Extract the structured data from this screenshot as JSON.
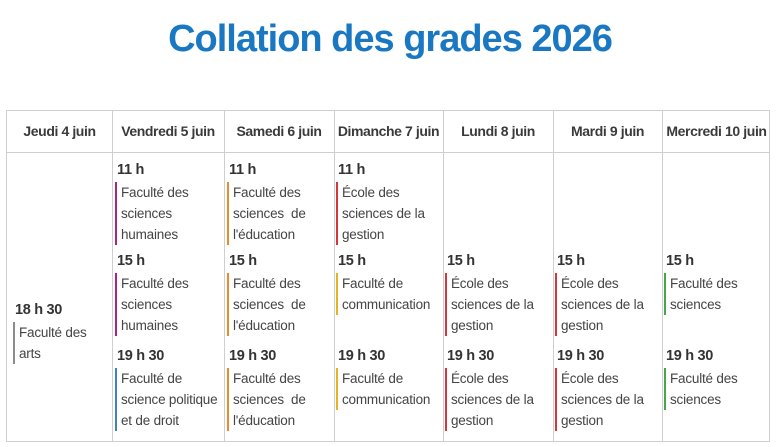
{
  "title": "Collation des grades 2026",
  "days": [
    {
      "label": "Jeudi 4 juin"
    },
    {
      "label": "Vendredi 5 juin"
    },
    {
      "label": "Samedi 6 juin"
    },
    {
      "label": "Dimanche 7 juin"
    },
    {
      "label": "Lundi 8 juin"
    },
    {
      "label": "Mardi 9 juin"
    },
    {
      "label": "Mercredi 10 juin"
    }
  ],
  "events": {
    "jeudi_1830": {
      "time": "18 h 30",
      "l1": "Faculté des",
      "l2": "arts",
      "color": "#8c8c8c"
    },
    "vendredi_11": {
      "time": "11 h",
      "l1": "Faculté des",
      "l2": "sciences",
      "l3": "humaines",
      "color": "#b3227a"
    },
    "vendredi_15": {
      "time": "15 h",
      "l1": "Faculté des",
      "l2": "sciences",
      "l3": "humaines",
      "color": "#b3227a"
    },
    "vendredi_1930": {
      "time": "19 h 30",
      "l1": "Faculté de",
      "l2": "science politique",
      "l3": "et de droit",
      "color": "#3b83c4"
    },
    "samedi_11": {
      "time": "11 h",
      "l1": "Faculté des",
      "l2": "sciences  de",
      "l3": "l'éducation",
      "color": "#ec8a2c"
    },
    "samedi_15": {
      "time": "15 h",
      "l1": "Faculté des",
      "l2": "sciences  de",
      "l3": "l'éducation",
      "color": "#ec8a2c"
    },
    "samedi_1930": {
      "time": "19 h 30",
      "l1": "Faculté des",
      "l2": "sciences  de",
      "l3": "l'éducation",
      "color": "#ec8a2c"
    },
    "dimanche_11": {
      "time": "11 h",
      "l1": "École des",
      "l2": "sciences de la",
      "l3": "gestion",
      "color": "#d7353c"
    },
    "dimanche_15": {
      "time": "15 h",
      "l1": "Faculté de",
      "l2": "communication",
      "color": "#e7b322"
    },
    "dimanche_1930": {
      "time": "19 h 30",
      "l1": "Faculté de",
      "l2": "communication",
      "color": "#e7b322"
    },
    "lundi_15": {
      "time": "15 h",
      "l1": "École des",
      "l2": "sciences de la",
      "l3": "gestion",
      "color": "#d7353c"
    },
    "lundi_1930": {
      "time": "19 h 30",
      "l1": "École des",
      "l2": "sciences de la",
      "l3": "gestion",
      "color": "#d7353c"
    },
    "mardi_15": {
      "time": "15 h",
      "l1": "École des",
      "l2": "sciences de la",
      "l3": "gestion",
      "color": "#d7353c"
    },
    "mardi_1930": {
      "time": "19 h 30",
      "l1": "École des",
      "l2": "sciences de la",
      "l3": "gestion",
      "color": "#d7353c"
    },
    "mercredi_15": {
      "time": "15 h",
      "l1": "Faculté des",
      "l2": "sciences",
      "color": "#44a84a"
    },
    "mercredi_1930": {
      "time": "19 h 30",
      "l1": "Faculté des",
      "l2": "sciences",
      "color": "#44a84a"
    }
  }
}
